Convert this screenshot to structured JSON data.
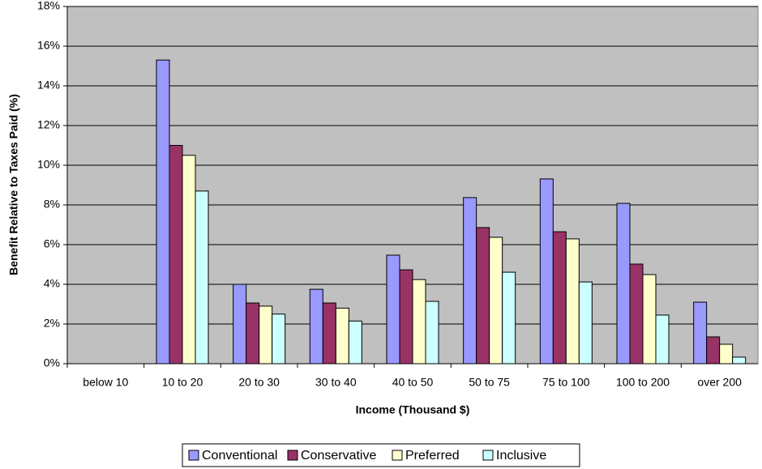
{
  "chart_data": {
    "type": "bar",
    "x_label": "Income (Thousand $)",
    "y_label": "Benefit Relative to Taxes Paid (%)",
    "categories": [
      "below 10",
      "10 to 20",
      "20 to 30",
      "30 to 40",
      "40 to 50",
      "50 to 75",
      "75 to 100",
      "100 to 200",
      "over 200"
    ],
    "series": [
      {
        "name": "Conventional",
        "color": "#9999ff",
        "values": [
          0,
          15.3,
          4.0,
          3.75,
          5.47,
          8.37,
          9.31,
          8.08,
          3.1
        ]
      },
      {
        "name": "Conservative",
        "color": "#993366",
        "values": [
          0,
          11.0,
          3.06,
          3.06,
          4.73,
          6.86,
          6.65,
          5.02,
          1.35
        ]
      },
      {
        "name": "Preferred",
        "color": "#ffffcc",
        "values": [
          0,
          10.5,
          2.9,
          2.8,
          4.24,
          6.37,
          6.29,
          4.49,
          0.98
        ]
      },
      {
        "name": "Inclusive",
        "color": "#ccffff",
        "values": [
          0,
          8.7,
          2.5,
          2.15,
          3.14,
          4.61,
          4.12,
          2.45,
          0.33
        ]
      }
    ],
    "ylim": [
      0,
      18
    ],
    "yticks": [
      {
        "value": 0,
        "label": "0%"
      },
      {
        "value": 2,
        "label": "2%"
      },
      {
        "value": 4,
        "label": "4%"
      },
      {
        "value": 6,
        "label": "6%"
      },
      {
        "value": 8,
        "label": "8%"
      },
      {
        "value": 10,
        "label": "10%"
      },
      {
        "value": 12,
        "label": "12%"
      },
      {
        "value": 14,
        "label": "14%"
      },
      {
        "value": 16,
        "label": "16%"
      },
      {
        "value": 18,
        "label": "18%"
      }
    ],
    "grid": true,
    "legend": "bottom"
  }
}
